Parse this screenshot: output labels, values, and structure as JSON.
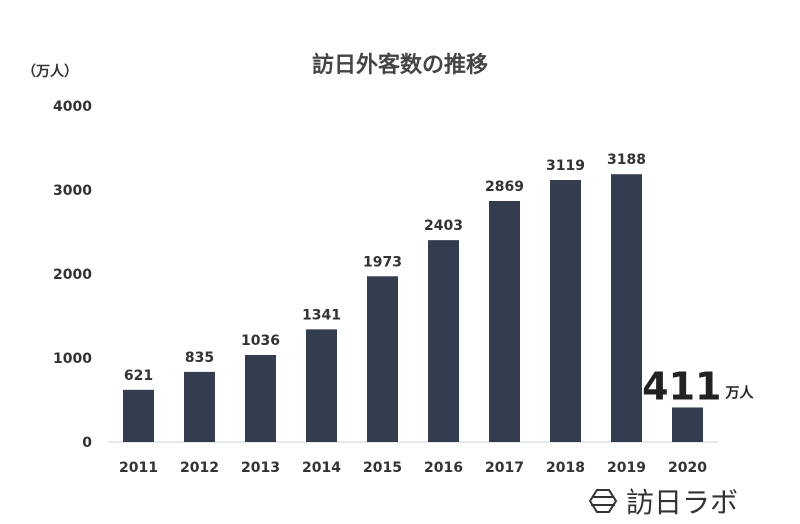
{
  "chart_data": {
    "type": "bar",
    "title": "訪日外客数の推移",
    "ylabel": "（万人）",
    "xlabel": "",
    "ylim": [
      0,
      4000
    ],
    "yticks": [
      0,
      1000,
      2000,
      3000,
      4000
    ],
    "grid": false,
    "categories": [
      "2011",
      "2012",
      "2013",
      "2014",
      "2015",
      "2016",
      "2017",
      "2018",
      "2019",
      "2020"
    ],
    "values": [
      621,
      835,
      1036,
      1341,
      1973,
      2403,
      2869,
      3119,
      3188,
      411
    ],
    "data_labels": [
      "621",
      "835",
      "1036",
      "1341",
      "1973",
      "2403",
      "2869",
      "3119",
      "3188",
      "411"
    ],
    "highlight": {
      "index": 9,
      "label": "411",
      "unit": "万人"
    },
    "bar_color": "#333d4f"
  },
  "brand": {
    "name": "訪日ラボ",
    "icon": "hexagon-logo-icon"
  }
}
